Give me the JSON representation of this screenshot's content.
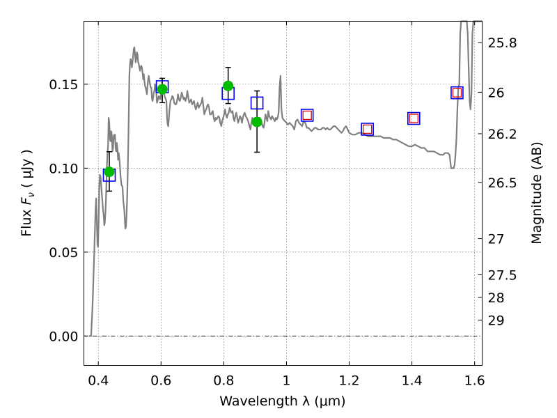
{
  "chart_data": {
    "type": "scatter",
    "xlabel": "Wavelength  λ (μm)",
    "ylabel": "Flux  F_ν  ( μJy )",
    "ylabel_parts": {
      "prefix": "Flux  ",
      "symbol": "F",
      "subscript": "ν",
      "suffix": "  ( μJy )"
    },
    "right_ylabel": "Magnitude (AB)",
    "xlim": [
      0.354,
      1.624
    ],
    "ylim": [
      -0.0175,
      0.1875
    ],
    "x_ticks": [
      0.4,
      0.6,
      0.8,
      1.0,
      1.2,
      1.4,
      1.6
    ],
    "x_tick_labels": [
      "0.4",
      "0.6",
      "0.8",
      "1",
      "1.2",
      "1.4",
      "1.6"
    ],
    "y_ticks": [
      0.0,
      0.05,
      0.1,
      0.15
    ],
    "y_tick_labels": [
      "0.00",
      "0.05",
      "0.10",
      "0.15"
    ],
    "right_axis_ticks": [
      {
        "flux": 0.1748,
        "label": "25.8"
      },
      {
        "flux": 0.1452,
        "label": "26"
      },
      {
        "flux": 0.1205,
        "label": "26.2"
      },
      {
        "flux": 0.0915,
        "label": "26.5"
      },
      {
        "flux": 0.058,
        "label": "27"
      },
      {
        "flux": 0.0365,
        "label": "27.5"
      },
      {
        "flux": 0.023,
        "label": "28"
      },
      {
        "flux": 0.0095,
        "label": "29"
      }
    ],
    "grid": true,
    "zero_line": 0.0,
    "colors": {
      "model": "#808080",
      "measured": "#00bb00",
      "model_photometry": "#0000ee",
      "inner_box": "#dd0000",
      "error_bar": "#000000"
    },
    "series": [
      {
        "kind": "line",
        "x": [
          0.37,
          0.377,
          0.382,
          0.387,
          0.391,
          0.393,
          0.395,
          0.397,
          0.399,
          0.401,
          0.403,
          0.405,
          0.407,
          0.409,
          0.411,
          0.413,
          0.415,
          0.417,
          0.419,
          0.421,
          0.423,
          0.425,
          0.427,
          0.429,
          0.431,
          0.433,
          0.435,
          0.437,
          0.439,
          0.441,
          0.443,
          0.445,
          0.447,
          0.449,
          0.451,
          0.453,
          0.455,
          0.457,
          0.459,
          0.461,
          0.463,
          0.465,
          0.468,
          0.471,
          0.474,
          0.477,
          0.48,
          0.483,
          0.486,
          0.488,
          0.49,
          0.492,
          0.494,
          0.496,
          0.499,
          0.501,
          0.503,
          0.505,
          0.507,
          0.509,
          0.511,
          0.513,
          0.515,
          0.517,
          0.519,
          0.521,
          0.523,
          0.525,
          0.527,
          0.529,
          0.531,
          0.533,
          0.535,
          0.537,
          0.539,
          0.541,
          0.543,
          0.545,
          0.547,
          0.549,
          0.551,
          0.553,
          0.555,
          0.557,
          0.559,
          0.561,
          0.563,
          0.565,
          0.567,
          0.569,
          0.571,
          0.573,
          0.575,
          0.577,
          0.579,
          0.581,
          0.583,
          0.585,
          0.587,
          0.589,
          0.591,
          0.593,
          0.595,
          0.597,
          0.599,
          0.601,
          0.603,
          0.605,
          0.607,
          0.609,
          0.611,
          0.613,
          0.615,
          0.617,
          0.619,
          0.621,
          0.623,
          0.625,
          0.627,
          0.63,
          0.633,
          0.636,
          0.639,
          0.642,
          0.645,
          0.648,
          0.651,
          0.654,
          0.657,
          0.66,
          0.663,
          0.666,
          0.669,
          0.672,
          0.675,
          0.678,
          0.681,
          0.684,
          0.687,
          0.69,
          0.693,
          0.696,
          0.699,
          0.702,
          0.705,
          0.708,
          0.711,
          0.714,
          0.717,
          0.72,
          0.723,
          0.726,
          0.729,
          0.732,
          0.735,
          0.738,
          0.741,
          0.744,
          0.747,
          0.75,
          0.753,
          0.756,
          0.759,
          0.762,
          0.765,
          0.768,
          0.771,
          0.774,
          0.777,
          0.78,
          0.783,
          0.786,
          0.789,
          0.792,
          0.795,
          0.798,
          0.801,
          0.804,
          0.807,
          0.81,
          0.813,
          0.816,
          0.819,
          0.822,
          0.825,
          0.828,
          0.831,
          0.834,
          0.837,
          0.84,
          0.843,
          0.846,
          0.849,
          0.852,
          0.855,
          0.858,
          0.861,
          0.864,
          0.867,
          0.87,
          0.873,
          0.876,
          0.879,
          0.882,
          0.885,
          0.888,
          0.891,
          0.894,
          0.897,
          0.9,
          0.903,
          0.906,
          0.909,
          0.912,
          0.915,
          0.918,
          0.921,
          0.924,
          0.927,
          0.93,
          0.933,
          0.936,
          0.939,
          0.942,
          0.945,
          0.948,
          0.951,
          0.954,
          0.957,
          0.96,
          0.963,
          0.966,
          0.969,
          0.972,
          0.975,
          0.978,
          0.981,
          0.984,
          0.987,
          0.99,
          0.995,
          1.0,
          1.005,
          1.01,
          1.015,
          1.02,
          1.025,
          1.03,
          1.035,
          1.04,
          1.045,
          1.05,
          1.055,
          1.06,
          1.065,
          1.07,
          1.075,
          1.08,
          1.085,
          1.09,
          1.095,
          1.1,
          1.105,
          1.11,
          1.115,
          1.12,
          1.125,
          1.13,
          1.135,
          1.14,
          1.145,
          1.15,
          1.155,
          1.16,
          1.165,
          1.17,
          1.175,
          1.18,
          1.185,
          1.19,
          1.195,
          1.2,
          1.21,
          1.22,
          1.23,
          1.24,
          1.25,
          1.26,
          1.27,
          1.28,
          1.29,
          1.3,
          1.31,
          1.32,
          1.33,
          1.34,
          1.35,
          1.36,
          1.37,
          1.38,
          1.39,
          1.4,
          1.41,
          1.42,
          1.43,
          1.44,
          1.45,
          1.46,
          1.47,
          1.48,
          1.49,
          1.5,
          1.505,
          1.51,
          1.515,
          1.52,
          1.525,
          1.53,
          1.533,
          1.536,
          1.539,
          1.542,
          1.545,
          1.548,
          1.551,
          1.554,
          1.557,
          1.56,
          1.563,
          1.566,
          1.569,
          1.572,
          1.575,
          1.578,
          1.581,
          1.584,
          1.587,
          1.59,
          1.593,
          1.596,
          1.599,
          1.602,
          1.605,
          1.608,
          1.611,
          1.614,
          1.617,
          1.62,
          1.624
        ],
        "y": [
          0.0,
          0.0,
          0.02,
          0.05,
          0.075,
          0.082,
          0.07,
          0.055,
          0.053,
          0.068,
          0.088,
          0.096,
          0.095,
          0.09,
          0.085,
          0.08,
          0.075,
          0.072,
          0.066,
          0.068,
          0.075,
          0.085,
          0.1,
          0.108,
          0.113,
          0.13,
          0.127,
          0.117,
          0.116,
          0.122,
          0.12,
          0.11,
          0.112,
          0.119,
          0.12,
          0.12,
          0.112,
          0.11,
          0.115,
          0.112,
          0.105,
          0.109,
          0.104,
          0.095,
          0.09,
          0.089,
          0.08,
          0.075,
          0.064,
          0.065,
          0.072,
          0.083,
          0.1,
          0.12,
          0.155,
          0.162,
          0.165,
          0.164,
          0.16,
          0.163,
          0.167,
          0.171,
          0.172,
          0.168,
          0.163,
          0.165,
          0.169,
          0.168,
          0.163,
          0.162,
          0.16,
          0.158,
          0.16,
          0.161,
          0.16,
          0.157,
          0.153,
          0.156,
          0.152,
          0.149,
          0.148,
          0.146,
          0.144,
          0.149,
          0.153,
          0.155,
          0.152,
          0.15,
          0.148,
          0.148,
          0.142,
          0.14,
          0.142,
          0.145,
          0.146,
          0.15,
          0.148,
          0.145,
          0.139,
          0.14,
          0.142,
          0.143,
          0.142,
          0.141,
          0.142,
          0.147,
          0.146,
          0.145,
          0.145,
          0.148,
          0.143,
          0.142,
          0.141,
          0.14,
          0.13,
          0.126,
          0.125,
          0.13,
          0.135,
          0.14,
          0.141,
          0.143,
          0.142,
          0.139,
          0.138,
          0.138,
          0.14,
          0.144,
          0.141,
          0.14,
          0.142,
          0.145,
          0.143,
          0.141,
          0.142,
          0.14,
          0.142,
          0.146,
          0.142,
          0.139,
          0.14,
          0.141,
          0.138,
          0.139,
          0.14,
          0.137,
          0.135,
          0.137,
          0.139,
          0.136,
          0.137,
          0.138,
          0.139,
          0.142,
          0.137,
          0.132,
          0.134,
          0.135,
          0.137,
          0.138,
          0.136,
          0.132,
          0.132,
          0.133,
          0.134,
          0.13,
          0.128,
          0.13,
          0.129,
          0.13,
          0.131,
          0.13,
          0.127,
          0.125,
          0.128,
          0.13,
          0.132,
          0.135,
          0.132,
          0.13,
          0.132,
          0.133,
          0.136,
          0.134,
          0.133,
          0.134,
          0.13,
          0.128,
          0.131,
          0.133,
          0.13,
          0.127,
          0.129,
          0.131,
          0.13,
          0.127,
          0.13,
          0.132,
          0.133,
          0.131,
          0.13,
          0.129,
          0.127,
          0.125,
          0.123,
          0.127,
          0.13,
          0.129,
          0.128,
          0.13,
          0.127,
          0.125,
          0.125,
          0.128,
          0.13,
          0.129,
          0.127,
          0.125,
          0.124,
          0.127,
          0.132,
          0.13,
          0.128,
          0.134,
          0.131,
          0.13,
          0.129,
          0.131,
          0.13,
          0.129,
          0.128,
          0.13,
          0.129,
          0.13,
          0.133,
          0.148,
          0.155,
          0.135,
          0.13,
          0.129,
          0.128,
          0.127,
          0.126,
          0.127,
          0.126,
          0.125,
          0.123,
          0.128,
          0.129,
          0.127,
          0.126,
          0.125,
          0.128,
          0.127,
          0.124,
          0.124,
          0.123,
          0.122,
          0.123,
          0.124,
          0.124,
          0.123,
          0.123,
          0.123,
          0.124,
          0.124,
          0.123,
          0.124,
          0.123,
          0.123,
          0.124,
          0.125,
          0.125,
          0.124,
          0.123,
          0.122,
          0.121,
          0.122,
          0.124,
          0.125,
          0.123,
          0.121,
          0.12,
          0.12,
          0.121,
          0.121,
          0.12,
          0.119,
          0.119,
          0.119,
          0.119,
          0.119,
          0.118,
          0.118,
          0.118,
          0.117,
          0.117,
          0.116,
          0.115,
          0.114,
          0.113,
          0.113,
          0.114,
          0.113,
          0.112,
          0.112,
          0.11,
          0.11,
          0.11,
          0.109,
          0.108,
          0.108,
          0.109,
          0.109,
          0.109,
          0.108,
          0.1,
          0.1,
          0.1,
          0.102,
          0.108,
          0.118,
          0.135,
          0.148,
          0.15,
          0.18,
          0.194,
          0.194,
          0.195,
          0.195,
          0.193,
          0.195,
          0.19,
          0.18,
          0.16,
          0.14,
          0.135,
          0.145,
          0.18,
          0.195,
          0.195,
          0.195,
          0.195,
          0.195,
          0.195,
          0.195,
          0.195,
          0.195,
          0.195
        ]
      },
      {
        "kind": "model_photometry",
        "x": [
          0.435,
          0.604,
          0.814,
          0.906,
          1.066,
          1.258,
          1.406,
          1.544
        ],
        "y": [
          0.0958,
          0.1485,
          0.1445,
          0.1388,
          0.1315,
          0.1232,
          0.1296,
          0.1449
        ],
        "inner_box": [
          false,
          false,
          false,
          false,
          true,
          true,
          true,
          true
        ]
      },
      {
        "kind": "measured",
        "x": [
          0.435,
          0.604,
          0.814,
          0.906
        ],
        "y": [
          0.0978,
          0.147,
          0.149,
          0.1275
        ],
        "err_lo": [
          0.0115,
          0.008,
          0.0105,
          0.018
        ],
        "err_hi": [
          0.012,
          0.0065,
          0.011,
          0.0185
        ]
      }
    ]
  }
}
